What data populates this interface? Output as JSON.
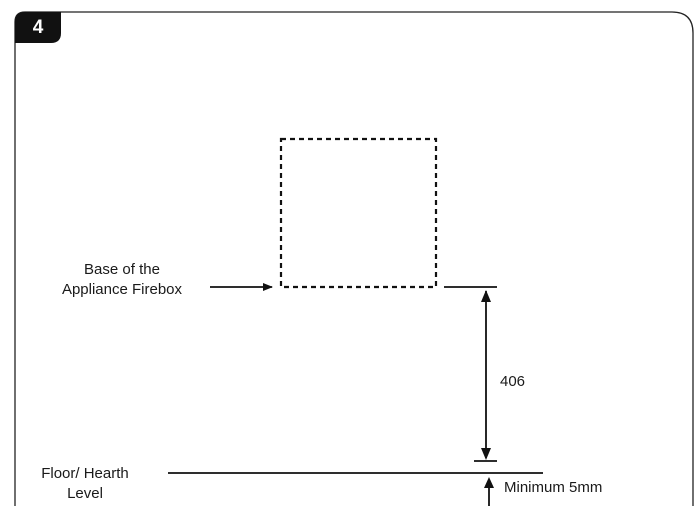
{
  "step": {
    "number": "4"
  },
  "labels": {
    "base_line1": "Base of the",
    "base_line2": "Appliance Firebox",
    "dimension": "406",
    "floor_line1": "Floor/ Hearth",
    "floor_line2": "Level",
    "minimum": "Minimum 5mm"
  },
  "colors": {
    "line": "#111111",
    "badge": "#111111",
    "frame": "#222222"
  }
}
